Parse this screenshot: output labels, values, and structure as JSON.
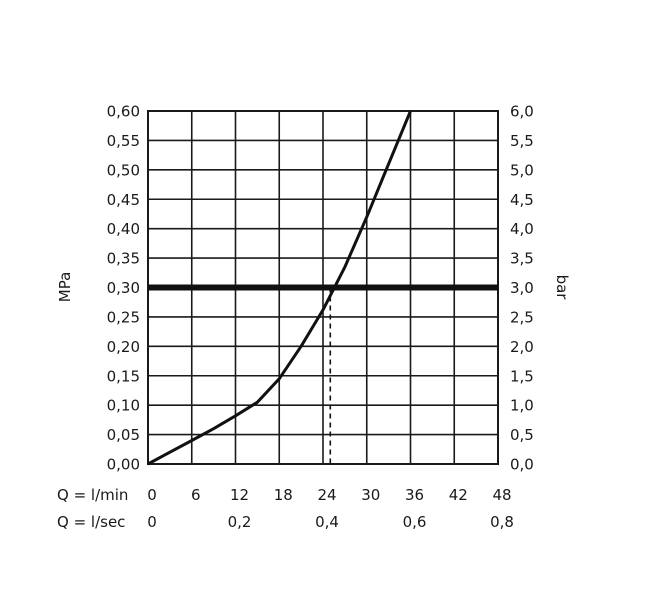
{
  "chart_data": {
    "type": "line",
    "xlabel_primary": "Q = l/min",
    "xlabel_secondary": "Q = l/sec",
    "ylabel_left": "MPa",
    "ylabel_right": "bar",
    "xlim": [
      0,
      48
    ],
    "ylim": [
      0,
      0.6
    ],
    "x_ticks": [
      "0",
      "6",
      "12",
      "18",
      "24",
      "30",
      "36",
      "42",
      "48"
    ],
    "x_ticks_secondary": [
      {
        "at": 0,
        "label": "0"
      },
      {
        "at": 12,
        "label": "0,2"
      },
      {
        "at": 24,
        "label": "0,4"
      },
      {
        "at": 36,
        "label": "0,6"
      },
      {
        "at": 48,
        "label": "0,8"
      }
    ],
    "y_ticks_left": [
      "0,00",
      "0,05",
      "0,10",
      "0,15",
      "0,20",
      "0,25",
      "0,30",
      "0,35",
      "0,40",
      "0,45",
      "0,50",
      "0,55",
      "0,60"
    ],
    "y_ticks_right": [
      "0,0",
      "0,5",
      "1,0",
      "1,5",
      "2,0",
      "2,5",
      "3,0",
      "3,5",
      "4,0",
      "4,5",
      "5,0",
      "5,5",
      "6,0"
    ],
    "grid": true,
    "series": [
      {
        "x": [
          0,
          3,
          6,
          9,
          12,
          15,
          18,
          21,
          24,
          27,
          30,
          33,
          36
        ],
        "y": [
          0.0,
          0.02,
          0.04,
          0.06,
          0.082,
          0.105,
          0.145,
          0.2,
          0.262,
          0.335,
          0.42,
          0.51,
          0.6
        ]
      }
    ],
    "reference_line": {
      "y": 0.3
    },
    "marker": {
      "x": 25,
      "y": 0.3
    }
  },
  "colors": {
    "line": "#111111",
    "grid": "#1a1a1a",
    "text": "#1a1a1a"
  }
}
